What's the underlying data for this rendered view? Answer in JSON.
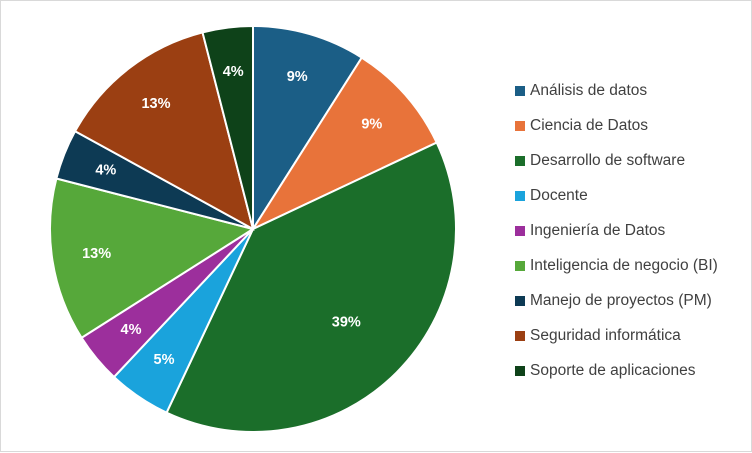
{
  "chart_data": {
    "type": "pie",
    "title": "",
    "legend_position": "right",
    "categories": [
      "Análisis de datos",
      "Ciencia de Datos",
      "Desarrollo de software",
      "Docente",
      "Ingeniería de Datos",
      "Inteligencia de negocio (BI)",
      "Manejo de proyectos (PM)",
      "Seguridad informática",
      "Soporte de aplicaciones"
    ],
    "values": [
      9,
      9,
      39,
      5,
      4,
      13,
      4,
      13,
      4
    ],
    "labels": [
      "9%",
      "9%",
      "39%",
      "5%",
      "4%",
      "13%",
      "4%",
      "13%",
      "4%"
    ],
    "colors": [
      "#1b5e86",
      "#e8733a",
      "#1b6e2a",
      "#1aa3dc",
      "#9c2f9c",
      "#56a83a",
      "#0d3a54",
      "#9b3f12",
      "#0e4219"
    ]
  }
}
